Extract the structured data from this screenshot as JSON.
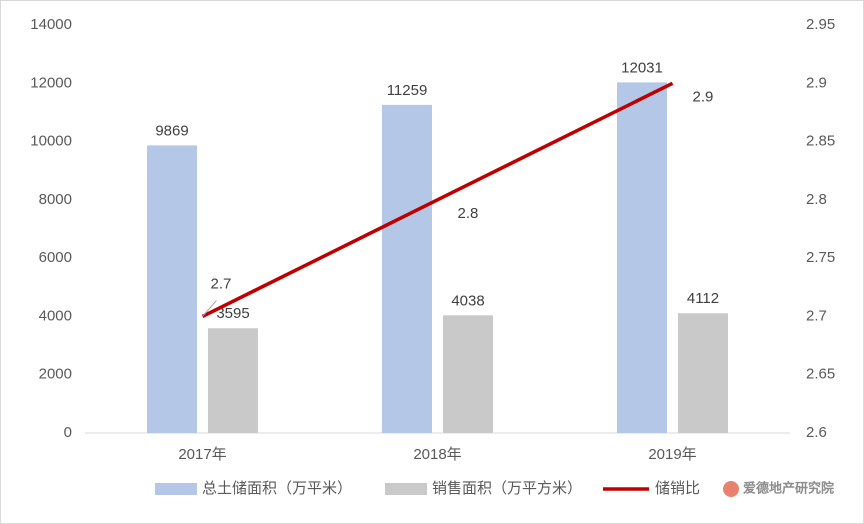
{
  "chart_data": {
    "type": "bar",
    "categories": [
      "2017年",
      "2018年",
      "2019年"
    ],
    "series": [
      {
        "name": "总土储面积（万平米）",
        "color": "#b4c7e7",
        "values": [
          9869,
          11259,
          12031
        ]
      },
      {
        "name": "销售面积（万平方米）",
        "color": "#c9c9c9",
        "values": [
          3595,
          4038,
          4112
        ]
      },
      {
        "name": "储销比",
        "color": "#c00000",
        "type": "line",
        "axis": "y2",
        "values": [
          2.7,
          2.8,
          2.9
        ]
      }
    ],
    "ylim": [
      0,
      14000
    ],
    "yticks": [
      0,
      2000,
      4000,
      6000,
      8000,
      10000,
      12000,
      14000
    ],
    "y2lim": [
      2.6,
      2.95
    ],
    "y2ticks": [
      2.6,
      2.65,
      2.7,
      2.75,
      2.8,
      2.85,
      2.9,
      2.95
    ],
    "grid": false,
    "legend": "bottom",
    "watermark": "爱德地产研究院"
  }
}
